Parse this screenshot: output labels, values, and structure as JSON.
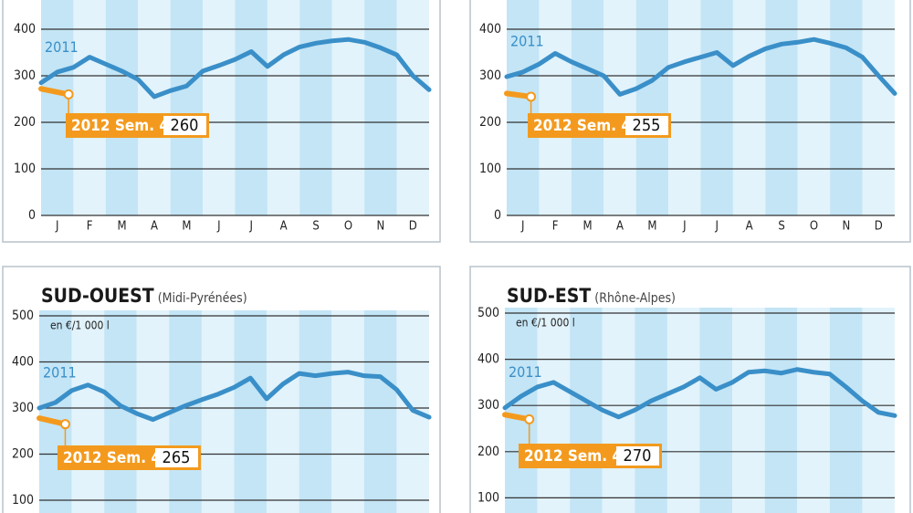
{
  "chart_data": [
    {
      "type": "line",
      "xlim": [
        0,
        12
      ],
      "ylim": [
        0,
        400
      ],
      "yticks": [
        0,
        100,
        200,
        300,
        400
      ],
      "grid": true,
      "xticks": [
        {
          "value": 0.5,
          "label": "J"
        },
        {
          "value": 1.5,
          "label": "F"
        },
        {
          "value": 2.5,
          "label": "M"
        },
        {
          "value": 3.5,
          "label": "A"
        },
        {
          "value": 4.5,
          "label": "M"
        },
        {
          "value": 5.5,
          "label": "J"
        },
        {
          "value": 6.5,
          "label": "J"
        },
        {
          "value": 7.5,
          "label": "A"
        },
        {
          "value": 8.5,
          "label": "S"
        },
        {
          "value": 9.5,
          "label": "O"
        },
        {
          "value": 10.5,
          "label": "N"
        },
        {
          "value": 11.5,
          "label": "D"
        }
      ],
      "series": [
        {
          "name": "2011",
          "color": "#3a8fc8",
          "x": [
            0,
            0.5,
            1,
            1.5,
            2,
            2.5,
            3,
            3.5,
            4,
            4.5,
            5,
            5.5,
            6,
            6.5,
            7,
            7.5,
            8,
            8.5,
            9,
            9.5,
            10,
            10.5,
            11,
            11.5,
            12
          ],
          "values": [
            285,
            308,
            318,
            340,
            325,
            310,
            292,
            255,
            268,
            278,
            310,
            322,
            335,
            352,
            320,
            345,
            362,
            370,
            375,
            378,
            372,
            360,
            345,
            300,
            270
          ]
        },
        {
          "name": "2012 Sem. 4",
          "color": "#f39a1e",
          "x": [
            0,
            0.85
          ],
          "values": [
            272,
            260
          ]
        }
      ]
    },
    {
      "type": "line",
      "xlim": [
        0,
        12
      ],
      "ylim": [
        0,
        400
      ],
      "yticks": [
        0,
        100,
        200,
        300,
        400
      ],
      "grid": true,
      "xticks": [
        {
          "value": 0.5,
          "label": "J"
        },
        {
          "value": 1.5,
          "label": "F"
        },
        {
          "value": 2.5,
          "label": "M"
        },
        {
          "value": 3.5,
          "label": "A"
        },
        {
          "value": 4.5,
          "label": "M"
        },
        {
          "value": 5.5,
          "label": "J"
        },
        {
          "value": 6.5,
          "label": "J"
        },
        {
          "value": 7.5,
          "label": "A"
        },
        {
          "value": 8.5,
          "label": "S"
        },
        {
          "value": 9.5,
          "label": "O"
        },
        {
          "value": 10.5,
          "label": "N"
        },
        {
          "value": 11.5,
          "label": "D"
        }
      ],
      "series": [
        {
          "name": "2011",
          "color": "#3a8fc8",
          "x": [
            0,
            0.5,
            1,
            1.5,
            2,
            2.5,
            3,
            3.5,
            4,
            4.5,
            5,
            5.5,
            6,
            6.5,
            7,
            7.5,
            8,
            8.5,
            9,
            9.5,
            10,
            10.5,
            11,
            11.5,
            12
          ],
          "values": [
            298,
            308,
            325,
            348,
            330,
            315,
            300,
            260,
            272,
            290,
            318,
            330,
            340,
            350,
            322,
            342,
            358,
            368,
            372,
            378,
            370,
            360,
            340,
            300,
            262
          ]
        },
        {
          "name": "2012 Sem. 4",
          "color": "#f39a1e",
          "x": [
            0,
            0.75
          ],
          "values": [
            262,
            255
          ]
        }
      ]
    },
    {
      "type": "line",
      "title": "SUD-OUEST",
      "subtitle": "(Midi-Pyrénées)",
      "unit": "en €/1 000 l",
      "xlim": [
        0,
        12
      ],
      "ylim": [
        0,
        500
      ],
      "yticks": [
        100,
        200,
        300,
        400,
        500
      ],
      "grid": true,
      "series": [
        {
          "name": "2011",
          "color": "#3a8fc8",
          "x": [
            0,
            0.5,
            1,
            1.5,
            2,
            2.5,
            3,
            3.5,
            4,
            4.5,
            5,
            5.5,
            6,
            6.5,
            7,
            7.5,
            8,
            8.5,
            9,
            9.5,
            10,
            10.5,
            11,
            11.5,
            12
          ],
          "values": [
            300,
            312,
            338,
            350,
            335,
            305,
            288,
            275,
            290,
            305,
            318,
            330,
            345,
            365,
            320,
            352,
            375,
            370,
            375,
            378,
            370,
            368,
            340,
            295,
            280
          ]
        },
        {
          "name": "2012 Sem. 4",
          "color": "#f39a1e",
          "x": [
            0,
            0.8
          ],
          "values": [
            278,
            265
          ]
        }
      ]
    },
    {
      "type": "line",
      "title": "SUD-EST",
      "subtitle": "(Rhône-Alpes)",
      "unit": "en €/1 000 l",
      "xlim": [
        0,
        12
      ],
      "ylim": [
        0,
        500
      ],
      "yticks": [
        100,
        200,
        300,
        400,
        500
      ],
      "grid": true,
      "series": [
        {
          "name": "2011",
          "color": "#3a8fc8",
          "x": [
            0,
            0.5,
            1,
            1.5,
            2,
            2.5,
            3,
            3.5,
            4,
            4.5,
            5,
            5.5,
            6,
            6.5,
            7,
            7.5,
            8,
            8.5,
            9,
            9.5,
            10,
            10.5,
            11,
            11.5,
            12
          ],
          "values": [
            295,
            320,
            340,
            350,
            330,
            310,
            290,
            275,
            290,
            310,
            325,
            340,
            360,
            335,
            350,
            372,
            375,
            370,
            378,
            372,
            368,
            340,
            310,
            285,
            278
          ]
        },
        {
          "name": "2012 Sem. 4",
          "color": "#f39a1e",
          "x": [
            0,
            0.75
          ],
          "values": [
            280,
            270
          ]
        }
      ]
    }
  ]
}
